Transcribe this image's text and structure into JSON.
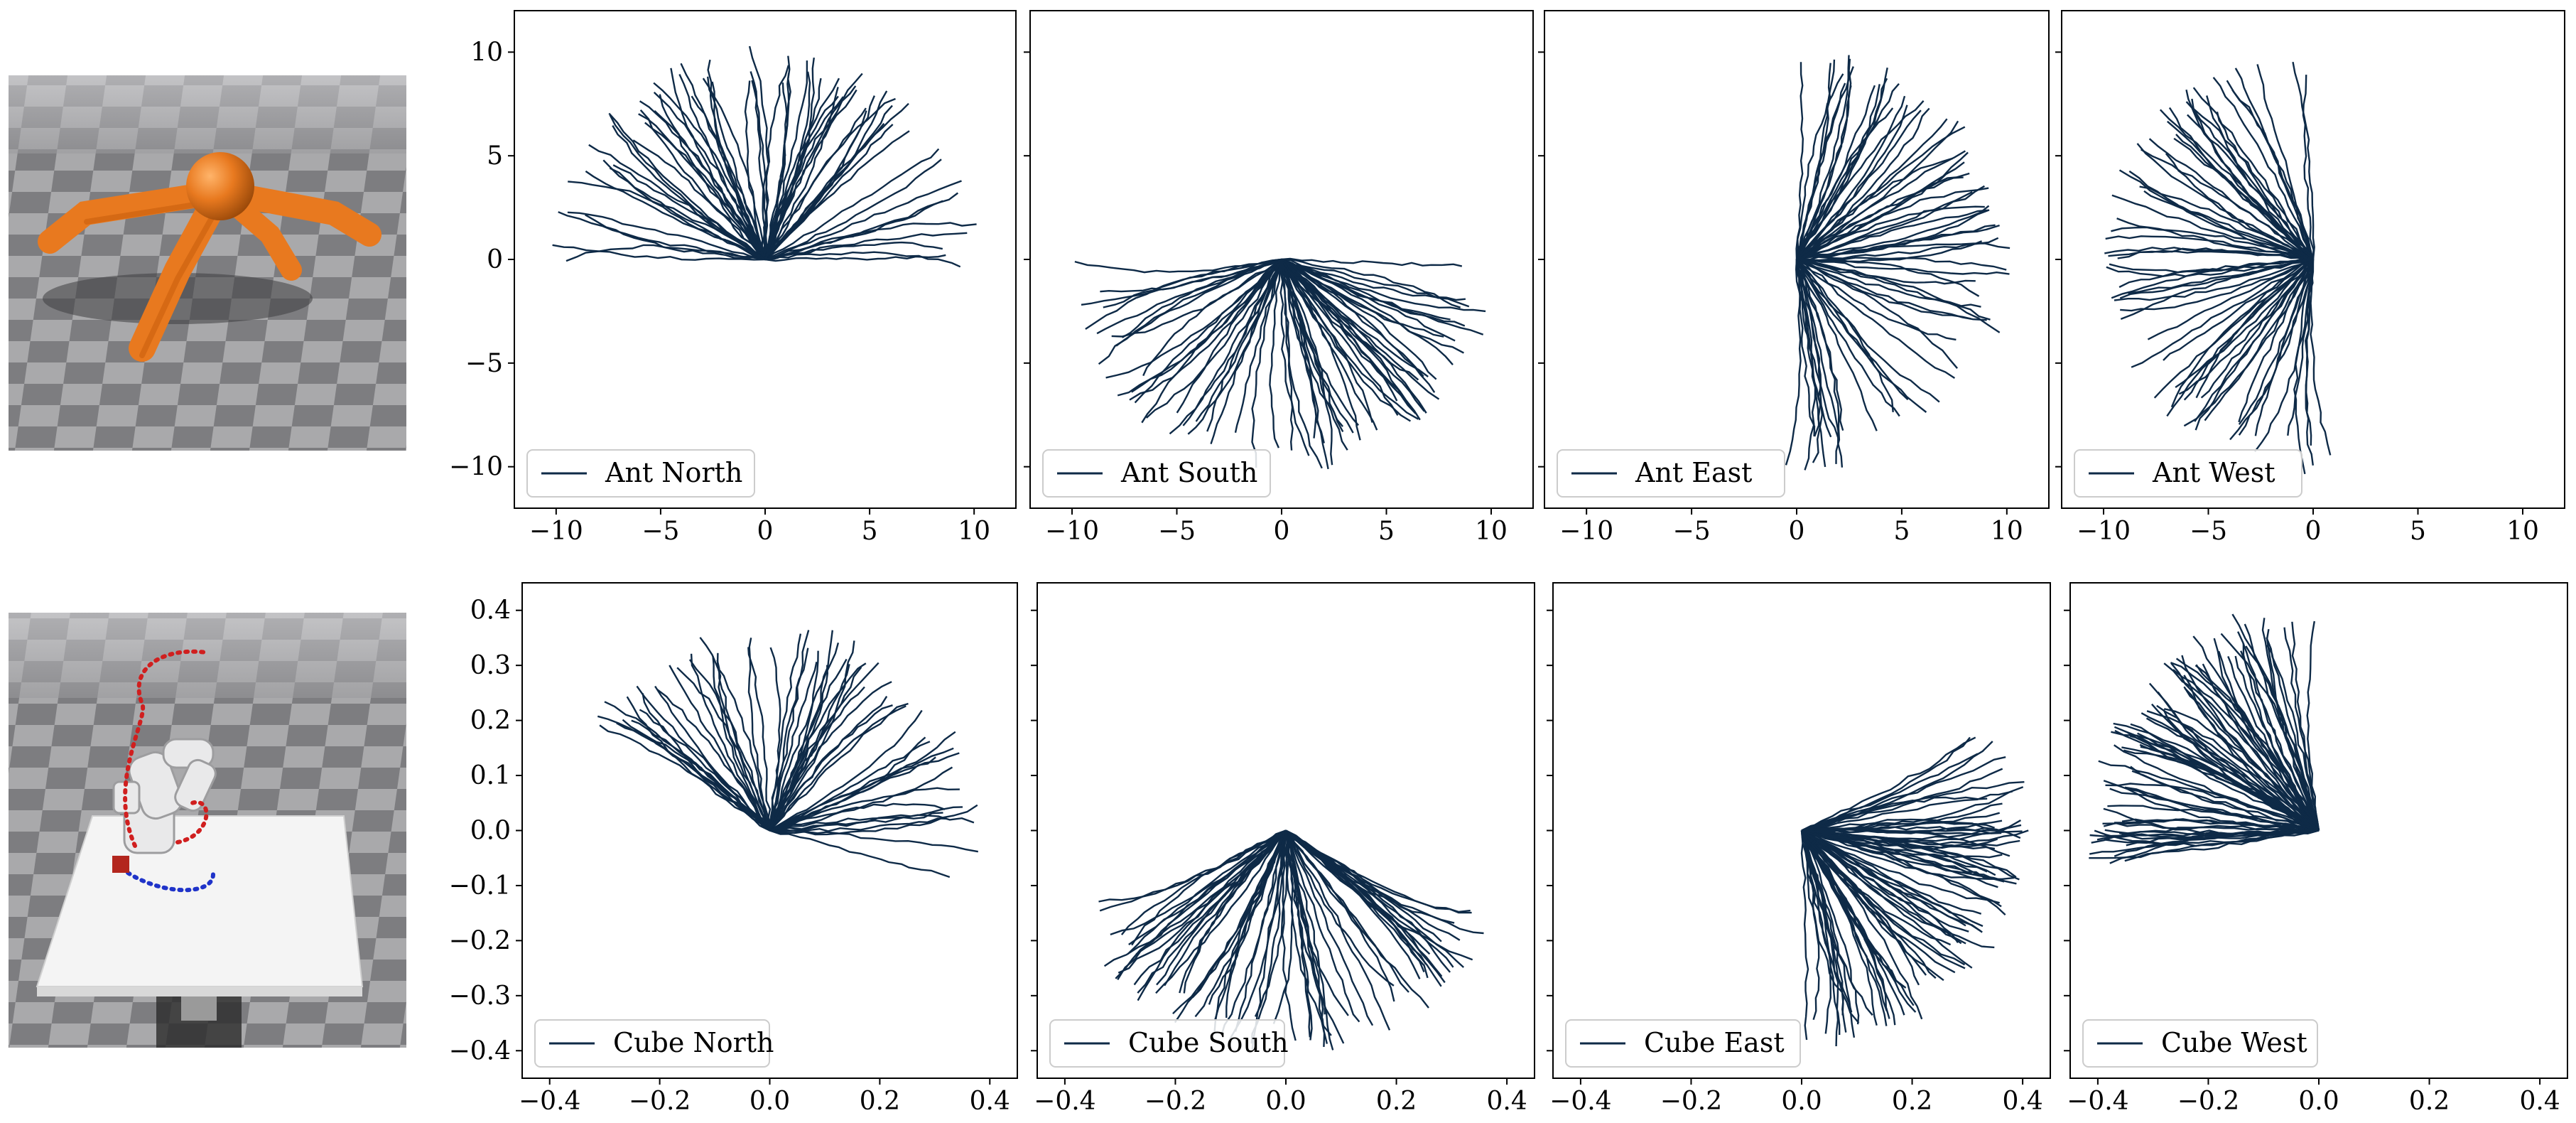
{
  "colors": {
    "trajectory": "#0e2a47",
    "frame": "#000000",
    "legend_border": "#cccccc",
    "ant_body": "#e8791f",
    "floor_light": "#a9a9ab",
    "floor_dark": "#7d7d80",
    "table": "#f4f4f4",
    "robot_path_red": "#d01f1f",
    "robot_path_blue": "#1f33c9",
    "cube": "#b3261e"
  },
  "images": {
    "ant": {
      "name": "ant-render"
    },
    "cube": {
      "name": "robot-arm-render"
    }
  },
  "chart_data": [
    {
      "type": "line",
      "id": "ant-north",
      "legend": "Ant North",
      "xlim": [
        -12,
        12
      ],
      "ylim": [
        -12,
        12
      ],
      "xticks": [
        -10,
        -5,
        0,
        5,
        10
      ],
      "yticks": [
        -10,
        -5,
        0,
        5,
        10
      ],
      "show_xticklabels": true,
      "show_yticklabels": true,
      "series": [
        {
          "name": "Ant North",
          "summary": "~70 trajectories fanning from (0,0) upward to radius ~10, angles 0°–180°"
        }
      ],
      "fan": {
        "origin": [
          0,
          0
        ],
        "radius": 10,
        "angle_range_deg": [
          0,
          180
        ],
        "count": 70
      }
    },
    {
      "type": "line",
      "id": "ant-south",
      "legend": "Ant South",
      "xlim": [
        -12,
        12
      ],
      "ylim": [
        -12,
        12
      ],
      "xticks": [
        -10,
        -5,
        0,
        5,
        10
      ],
      "yticks": [
        -10,
        -5,
        0,
        5,
        10
      ],
      "show_xticklabels": true,
      "show_yticklabels": false,
      "series": [
        {
          "name": "Ant South",
          "summary": "~70 trajectories fanning from (0,0) downward to radius ~10, angles 180°–360°"
        }
      ],
      "fan": {
        "origin": [
          0,
          0
        ],
        "radius": 10,
        "angle_range_deg": [
          180,
          360
        ],
        "count": 70
      }
    },
    {
      "type": "line",
      "id": "ant-east",
      "legend": "Ant East",
      "xlim": [
        -12,
        12
      ],
      "ylim": [
        -12,
        12
      ],
      "xticks": [
        -10,
        -5,
        0,
        5,
        10
      ],
      "yticks": [
        -10,
        -5,
        0,
        5,
        10
      ],
      "show_xticklabels": true,
      "show_yticklabels": false,
      "series": [
        {
          "name": "Ant East",
          "summary": "~70 trajectories fanning from (0,0) to the right to radius ~10, angles -90°–90°"
        }
      ],
      "fan": {
        "origin": [
          0,
          0
        ],
        "radius": 10,
        "angle_range_deg": [
          -90,
          90
        ],
        "count": 70
      }
    },
    {
      "type": "line",
      "id": "ant-west",
      "legend": "Ant West",
      "xlim": [
        -12,
        12
      ],
      "ylim": [
        -12,
        12
      ],
      "xticks": [
        -10,
        -5,
        0,
        5,
        10
      ],
      "yticks": [
        -10,
        -5,
        0,
        5,
        10
      ],
      "show_xticklabels": true,
      "show_yticklabels": false,
      "series": [
        {
          "name": "Ant West",
          "summary": "~70 trajectories fanning from (0,0) to the left to radius ~10, angles 90°–270°"
        }
      ],
      "fan": {
        "origin": [
          0,
          0
        ],
        "radius": 10,
        "angle_range_deg": [
          90,
          270
        ],
        "count": 70
      }
    },
    {
      "type": "line",
      "id": "cube-north",
      "legend": "Cube North",
      "xlim": [
        -0.45,
        0.45
      ],
      "ylim": [
        -0.45,
        0.45
      ],
      "xticks": [
        -0.4,
        -0.2,
        0.0,
        0.2,
        0.4
      ],
      "yticks": [
        -0.4,
        -0.3,
        -0.2,
        -0.1,
        0.0,
        0.1,
        0.2,
        0.3,
        0.4
      ],
      "show_xticklabels": true,
      "show_yticklabels": true,
      "series": [
        {
          "name": "Cube North",
          "summary": "~60 trajectories from (0,0) curving up-left toward (-0.24,0.31) and up-right toward (0.38,-0.05)"
        }
      ],
      "fan": {
        "origin": [
          0,
          0
        ],
        "radius": 0.37,
        "angle_range_deg": [
          -15,
          150
        ],
        "count": 60
      }
    },
    {
      "type": "line",
      "id": "cube-south",
      "legend": "Cube South",
      "xlim": [
        -0.45,
        0.45
      ],
      "ylim": [
        -0.45,
        0.45
      ],
      "xticks": [
        -0.4,
        -0.2,
        0.0,
        0.2,
        0.4
      ],
      "yticks": [
        -0.4,
        -0.3,
        -0.2,
        -0.1,
        0.0,
        0.1,
        0.2,
        0.3,
        0.4
      ],
      "show_xticklabels": true,
      "show_yticklabels": false,
      "series": [
        {
          "name": "Cube South",
          "summary": "~70 trajectories from (0,0) downward to y≈-0.4, x from -0.2 to 0.27"
        }
      ],
      "fan": {
        "origin": [
          0,
          0
        ],
        "radius": 0.4,
        "angle_range_deg": [
          205,
          330
        ],
        "count": 70
      }
    },
    {
      "type": "line",
      "id": "cube-east",
      "legend": "Cube East",
      "xlim": [
        -0.45,
        0.45
      ],
      "ylim": [
        -0.45,
        0.45
      ],
      "xticks": [
        -0.4,
        -0.2,
        0.0,
        0.2,
        0.4
      ],
      "yticks": [
        -0.4,
        -0.3,
        -0.2,
        -0.1,
        0.0,
        0.1,
        0.2,
        0.3,
        0.4
      ],
      "show_xticklabels": true,
      "show_yticklabels": false,
      "series": [
        {
          "name": "Cube East",
          "summary": "~80 trajectories from (0,0) downward and right to x≈0.38, y from 0.2 to -0.4"
        }
      ],
      "fan": {
        "origin": [
          0,
          0
        ],
        "radius": 0.4,
        "angle_range_deg": [
          -90,
          25
        ],
        "count": 80
      }
    },
    {
      "type": "line",
      "id": "cube-west",
      "legend": "Cube West",
      "xlim": [
        -0.45,
        0.45
      ],
      "ylim": [
        -0.45,
        0.45
      ],
      "xticks": [
        -0.4,
        -0.2,
        0.0,
        0.2,
        0.4
      ],
      "yticks": [
        -0.4,
        -0.3,
        -0.2,
        -0.1,
        0.0,
        0.1,
        0.2,
        0.3,
        0.4
      ],
      "show_xticklabels": true,
      "show_yticklabels": false,
      "series": [
        {
          "name": "Cube West",
          "summary": "~80 trajectories from (0,0) up-left to radius ~0.4, plus a few to lower-left (-0.35,-0.3)"
        }
      ],
      "fan": {
        "origin": [
          0,
          0
        ],
        "radius": 0.41,
        "angle_range_deg": [
          95,
          190
        ],
        "count": 80
      }
    }
  ]
}
